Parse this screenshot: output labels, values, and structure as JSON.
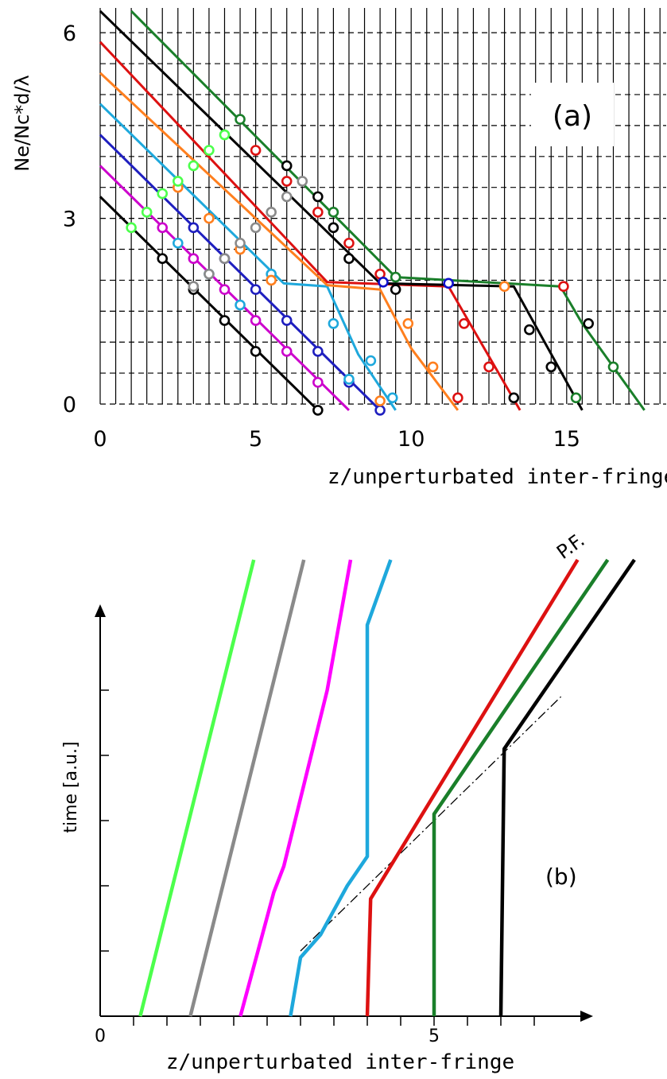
{
  "chart_data": [
    {
      "type": "line",
      "panel_label": "(a)",
      "xlabel": "z/unperturbated inter-fringe",
      "ylabel": "Ne/Nc*d/λ",
      "xlim": [
        0,
        18.2
      ],
      "ylim": [
        -0.05,
        6.4
      ],
      "x_ticks": [
        0,
        5,
        10,
        15
      ],
      "y_ticks": [
        0,
        3,
        6
      ],
      "grid": "dashed horizontal lines every 0.5, solid vertical lines every 0.5",
      "series": [
        {
          "color": "#000000",
          "points": [
            [
              0,
              3.35
            ],
            [
              7,
              -0.1
            ]
          ],
          "markers": [
            [
              2,
              2.35
            ],
            [
              3,
              1.85
            ],
            [
              4,
              1.35
            ],
            [
              5,
              0.85
            ],
            [
              7,
              -0.1
            ]
          ]
        },
        {
          "color": "#cc00cc",
          "points": [
            [
              0,
              3.85
            ],
            [
              8,
              -0.1
            ]
          ],
          "markers": [
            [
              2,
              2.85
            ],
            [
              3,
              2.35
            ],
            [
              4,
              1.85
            ],
            [
              5,
              1.35
            ],
            [
              6,
              0.85
            ],
            [
              7,
              0.35
            ]
          ]
        },
        {
          "color": "#1f1fbf",
          "points": [
            [
              0,
              4.35
            ],
            [
              9,
              -0.1
            ]
          ],
          "markers": [
            [
              3,
              2.85
            ],
            [
              4,
              2.35
            ],
            [
              5,
              1.85
            ],
            [
              6,
              1.35
            ],
            [
              7,
              0.85
            ],
            [
              8,
              0.35
            ],
            [
              9,
              -0.1
            ]
          ]
        },
        {
          "color": "#1ea8dc",
          "points": [
            [
              0,
              4.85
            ],
            [
              5.9,
              1.95
            ],
            [
              7.3,
              1.9
            ],
            [
              8.3,
              0.8
            ],
            [
              9.5,
              -0.1
            ]
          ],
          "markers": [
            [
              2.5,
              2.6
            ],
            [
              3.5,
              2.1
            ],
            [
              4.5,
              1.6
            ],
            [
              5.5,
              2.1
            ],
            [
              7.5,
              1.3
            ],
            [
              8.0,
              0.4
            ],
            [
              8.7,
              0.7
            ],
            [
              9.4,
              0.1
            ]
          ]
        },
        {
          "color": "#ff7f1e",
          "points": [
            [
              0,
              5.35
            ],
            [
              7.3,
              1.92
            ],
            [
              9.0,
              1.85
            ],
            [
              10.0,
              0.9
            ],
            [
              11.5,
              -0.1
            ]
          ],
          "markers": [
            [
              2.5,
              3.5
            ],
            [
              3.5,
              3.0
            ],
            [
              4.5,
              2.5
            ],
            [
              5.5,
              2.0
            ],
            [
              9.0,
              0.05
            ],
            [
              10.7,
              0.6
            ],
            [
              9.9,
              1.3
            ],
            [
              13,
              1.9
            ]
          ]
        },
        {
          "color": "#dd1111",
          "points": [
            [
              0,
              5.85
            ],
            [
              7.3,
              1.97
            ],
            [
              11.2,
              1.9
            ],
            [
              13.5,
              -0.1
            ]
          ],
          "markers": [
            [
              5,
              4.1
            ],
            [
              6,
              3.6
            ],
            [
              7,
              3.1
            ],
            [
              8,
              2.6
            ],
            [
              9,
              2.1
            ],
            [
              11.5,
              0.1
            ],
            [
              12.5,
              0.6
            ],
            [
              11.7,
              1.3
            ],
            [
              14.9,
              1.9
            ]
          ]
        },
        {
          "color": "#000000",
          "points": [
            [
              0,
              6.35
            ],
            [
              9.0,
              1.95
            ],
            [
              13.3,
              1.9
            ],
            [
              15.5,
              -0.1
            ]
          ],
          "markers": [
            [
              6,
              3.85
            ],
            [
              7,
              3.35
            ],
            [
              7.5,
              2.85
            ],
            [
              8,
              2.35
            ],
            [
              9.5,
              1.85
            ],
            [
              13.3,
              0.1
            ],
            [
              14.5,
              0.6
            ],
            [
              13.8,
              1.2
            ],
            [
              15.7,
              1.3
            ]
          ]
        },
        {
          "color": "#1a7f2a",
          "points": [
            [
              1.0,
              6.35
            ],
            [
              9.5,
              2.05
            ],
            [
              14.8,
              1.9
            ],
            [
              15.5,
              1.3
            ],
            [
              17.5,
              -0.1
            ]
          ],
          "markers": [
            [
              4.5,
              4.6
            ],
            [
              7.5,
              3.1
            ],
            [
              9.5,
              2.05
            ],
            [
              15.3,
              0.1
            ],
            [
              16.5,
              0.6
            ]
          ]
        },
        {
          "color": "#4cff4c",
          "points": [],
          "markers": [
            [
              1,
              2.85
            ],
            [
              1.5,
              3.1
            ],
            [
              2.0,
              3.4
            ],
            [
              2.5,
              3.6
            ],
            [
              3.0,
              3.85
            ],
            [
              3.5,
              4.1
            ],
            [
              4.0,
              4.35
            ]
          ]
        },
        {
          "color": "#8a8a8a",
          "points": [],
          "markers": [
            [
              3,
              1.9
            ],
            [
              3.5,
              2.1
            ],
            [
              4,
              2.35
            ],
            [
              4.5,
              2.6
            ],
            [
              5,
              2.85
            ],
            [
              5.5,
              3.1
            ],
            [
              6,
              3.35
            ],
            [
              6.5,
              3.6
            ]
          ]
        },
        {
          "color": "#1010cc",
          "points": [],
          "markers": [
            [
              9.1,
              1.97
            ],
            [
              11.2,
              1.95
            ]
          ]
        }
      ]
    },
    {
      "type": "line",
      "panel_label": "(b)",
      "xlabel": "z/unperturbated inter-fringe",
      "ylabel": "time [a.u.]",
      "xlim": [
        0,
        7.5
      ],
      "ylim": [
        0,
        7.5
      ],
      "x_ticks": [
        0,
        5
      ],
      "annotation": "P.F.",
      "front_line": [
        [
          3.0,
          1.0
        ],
        [
          6.9,
          4.9
        ]
      ],
      "series": [
        {
          "color": "#4cff4c",
          "points": [
            [
              0.6,
              0
            ],
            [
              2.3,
              7
            ]
          ]
        },
        {
          "color": "#8a8a8a",
          "points": [
            [
              1.35,
              0
            ],
            [
              3.05,
              7
            ]
          ]
        },
        {
          "color": "#ff00ff",
          "points": [
            [
              2.1,
              0
            ],
            [
              2.6,
              1.9
            ],
            [
              2.75,
              2.3
            ],
            [
              3.4,
              5.0
            ],
            [
              3.75,
              7.0
            ]
          ]
        },
        {
          "color": "#1ea8dc",
          "points": [
            [
              2.85,
              0
            ],
            [
              3.0,
              0.9
            ],
            [
              3.3,
              1.25
            ],
            [
              3.7,
              2.0
            ],
            [
              4.0,
              2.45
            ],
            [
              4.0,
              6.0
            ],
            [
              4.35,
              7.0
            ]
          ]
        },
        {
          "color": "#dd1111",
          "points": [
            [
              4.0,
              0
            ],
            [
              4.05,
              1.8
            ],
            [
              7.15,
              7.0
            ]
          ]
        },
        {
          "color": "#1a7f2a",
          "points": [
            [
              5.0,
              0
            ],
            [
              5.0,
              3.1
            ],
            [
              7.6,
              7.0
            ]
          ]
        },
        {
          "color": "#000000",
          "points": [
            [
              6.0,
              0
            ],
            [
              6.05,
              4.1
            ],
            [
              8.0,
              7.0
            ]
          ]
        }
      ]
    }
  ]
}
